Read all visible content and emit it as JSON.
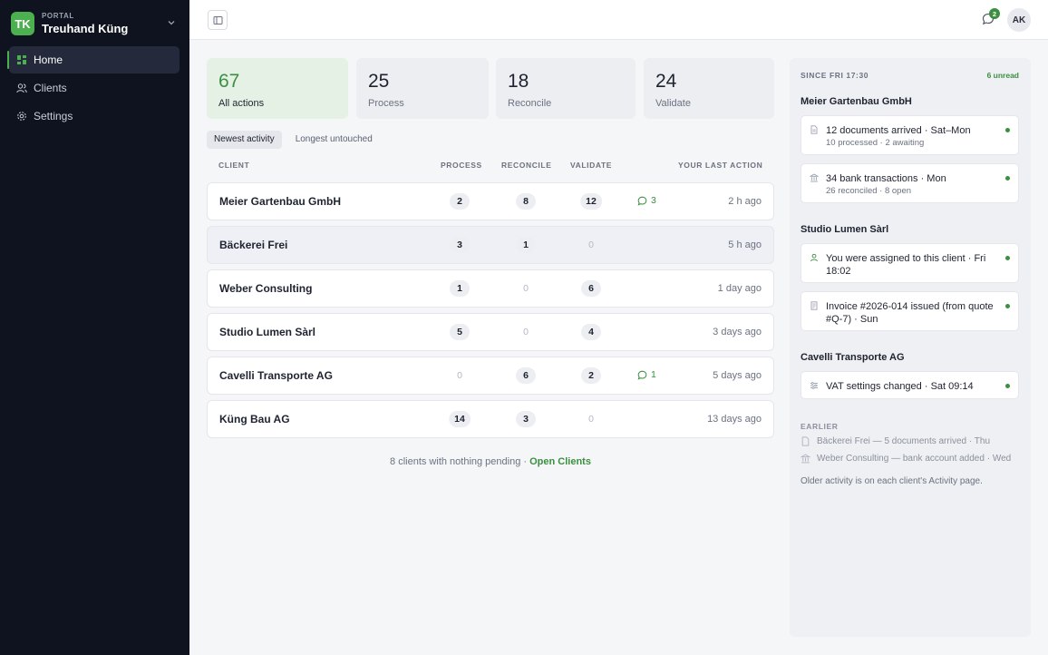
{
  "brand": {
    "initials": "TK",
    "kicker": "PORTAL",
    "name": "Treuhand Küng"
  },
  "nav": [
    {
      "label": "Home",
      "icon": "grid-icon",
      "active": true
    },
    {
      "label": "Clients",
      "icon": "users-icon",
      "active": false
    },
    {
      "label": "Settings",
      "icon": "gear-icon",
      "active": false
    }
  ],
  "topbar": {
    "notification_count": "2",
    "avatar_initials": "AK"
  },
  "stats": [
    {
      "value": "67",
      "label": "All actions"
    },
    {
      "value": "25",
      "label": "Process"
    },
    {
      "value": "18",
      "label": "Reconcile"
    },
    {
      "value": "24",
      "label": "Validate"
    }
  ],
  "tabs": [
    "Newest activity",
    "Longest untouched"
  ],
  "table": {
    "headers": {
      "client": "CLIENT",
      "process": "PROCESS",
      "reconcile": "RECONCILE",
      "validate": "VALIDATE",
      "last": "YOUR LAST ACTION"
    },
    "rows": [
      {
        "name": "Meier Gartenbau GmbH",
        "process": "2",
        "reconcile": "8",
        "validate": "12",
        "comments": "3",
        "last": "2 h ago"
      },
      {
        "name": "Bäckerei Frei",
        "process": "3",
        "reconcile": "1",
        "validate": "0",
        "comments": "",
        "last": "5 h ago"
      },
      {
        "name": "Weber Consulting",
        "process": "1",
        "reconcile": "0",
        "validate": "6",
        "comments": "",
        "last": "1 day ago"
      },
      {
        "name": "Studio Lumen Sàrl",
        "process": "5",
        "reconcile": "0",
        "validate": "4",
        "comments": "",
        "last": "3 days ago"
      },
      {
        "name": "Cavelli Transporte AG",
        "process": "0",
        "reconcile": "6",
        "validate": "2",
        "comments": "1",
        "last": "5 days ago"
      },
      {
        "name": "Küng Bau AG",
        "process": "14",
        "reconcile": "3",
        "validate": "0",
        "comments": "",
        "last": "13 days ago"
      }
    ],
    "footer_text": "8 clients with nothing pending ·",
    "footer_link": "Open Clients"
  },
  "panel": {
    "since": "SINCE FRI 17:30",
    "unread": "6 unread",
    "groups": [
      {
        "name": "Meier Gartenbau GmbH",
        "events": [
          {
            "icon": "document-icon",
            "title": "12 documents arrived · Sat–Mon",
            "sub": "10 processed · 2 awaiting"
          },
          {
            "icon": "bank-icon",
            "title": "34 bank transactions · Mon",
            "sub": "26 reconciled · 8 open"
          }
        ]
      },
      {
        "name": "Studio Lumen Sàrl",
        "events": [
          {
            "icon": "user-icon",
            "title": "You were assigned to this client · Fri 18:02",
            "sub": ""
          },
          {
            "icon": "invoice-icon",
            "title": "Invoice #2026-014 issued (from quote #Q-7) · Sun",
            "sub": ""
          }
        ]
      },
      {
        "name": "Cavelli Transporte AG",
        "events": [
          {
            "icon": "sliders-icon",
            "title": "VAT settings changed · Sat 09:14",
            "sub": ""
          }
        ]
      }
    ],
    "earlier_label": "EARLIER",
    "earlier": [
      {
        "icon": "document-icon",
        "text": "Bäckerei Frei — 5 documents arrived · Thu"
      },
      {
        "icon": "bank-icon",
        "text": "Weber Consulting — bank account added · Wed"
      }
    ],
    "older_note": "Older activity is on each client's Activity page."
  },
  "colors": {
    "accent": "#3c8f40",
    "sidebar": "#0f1320"
  }
}
